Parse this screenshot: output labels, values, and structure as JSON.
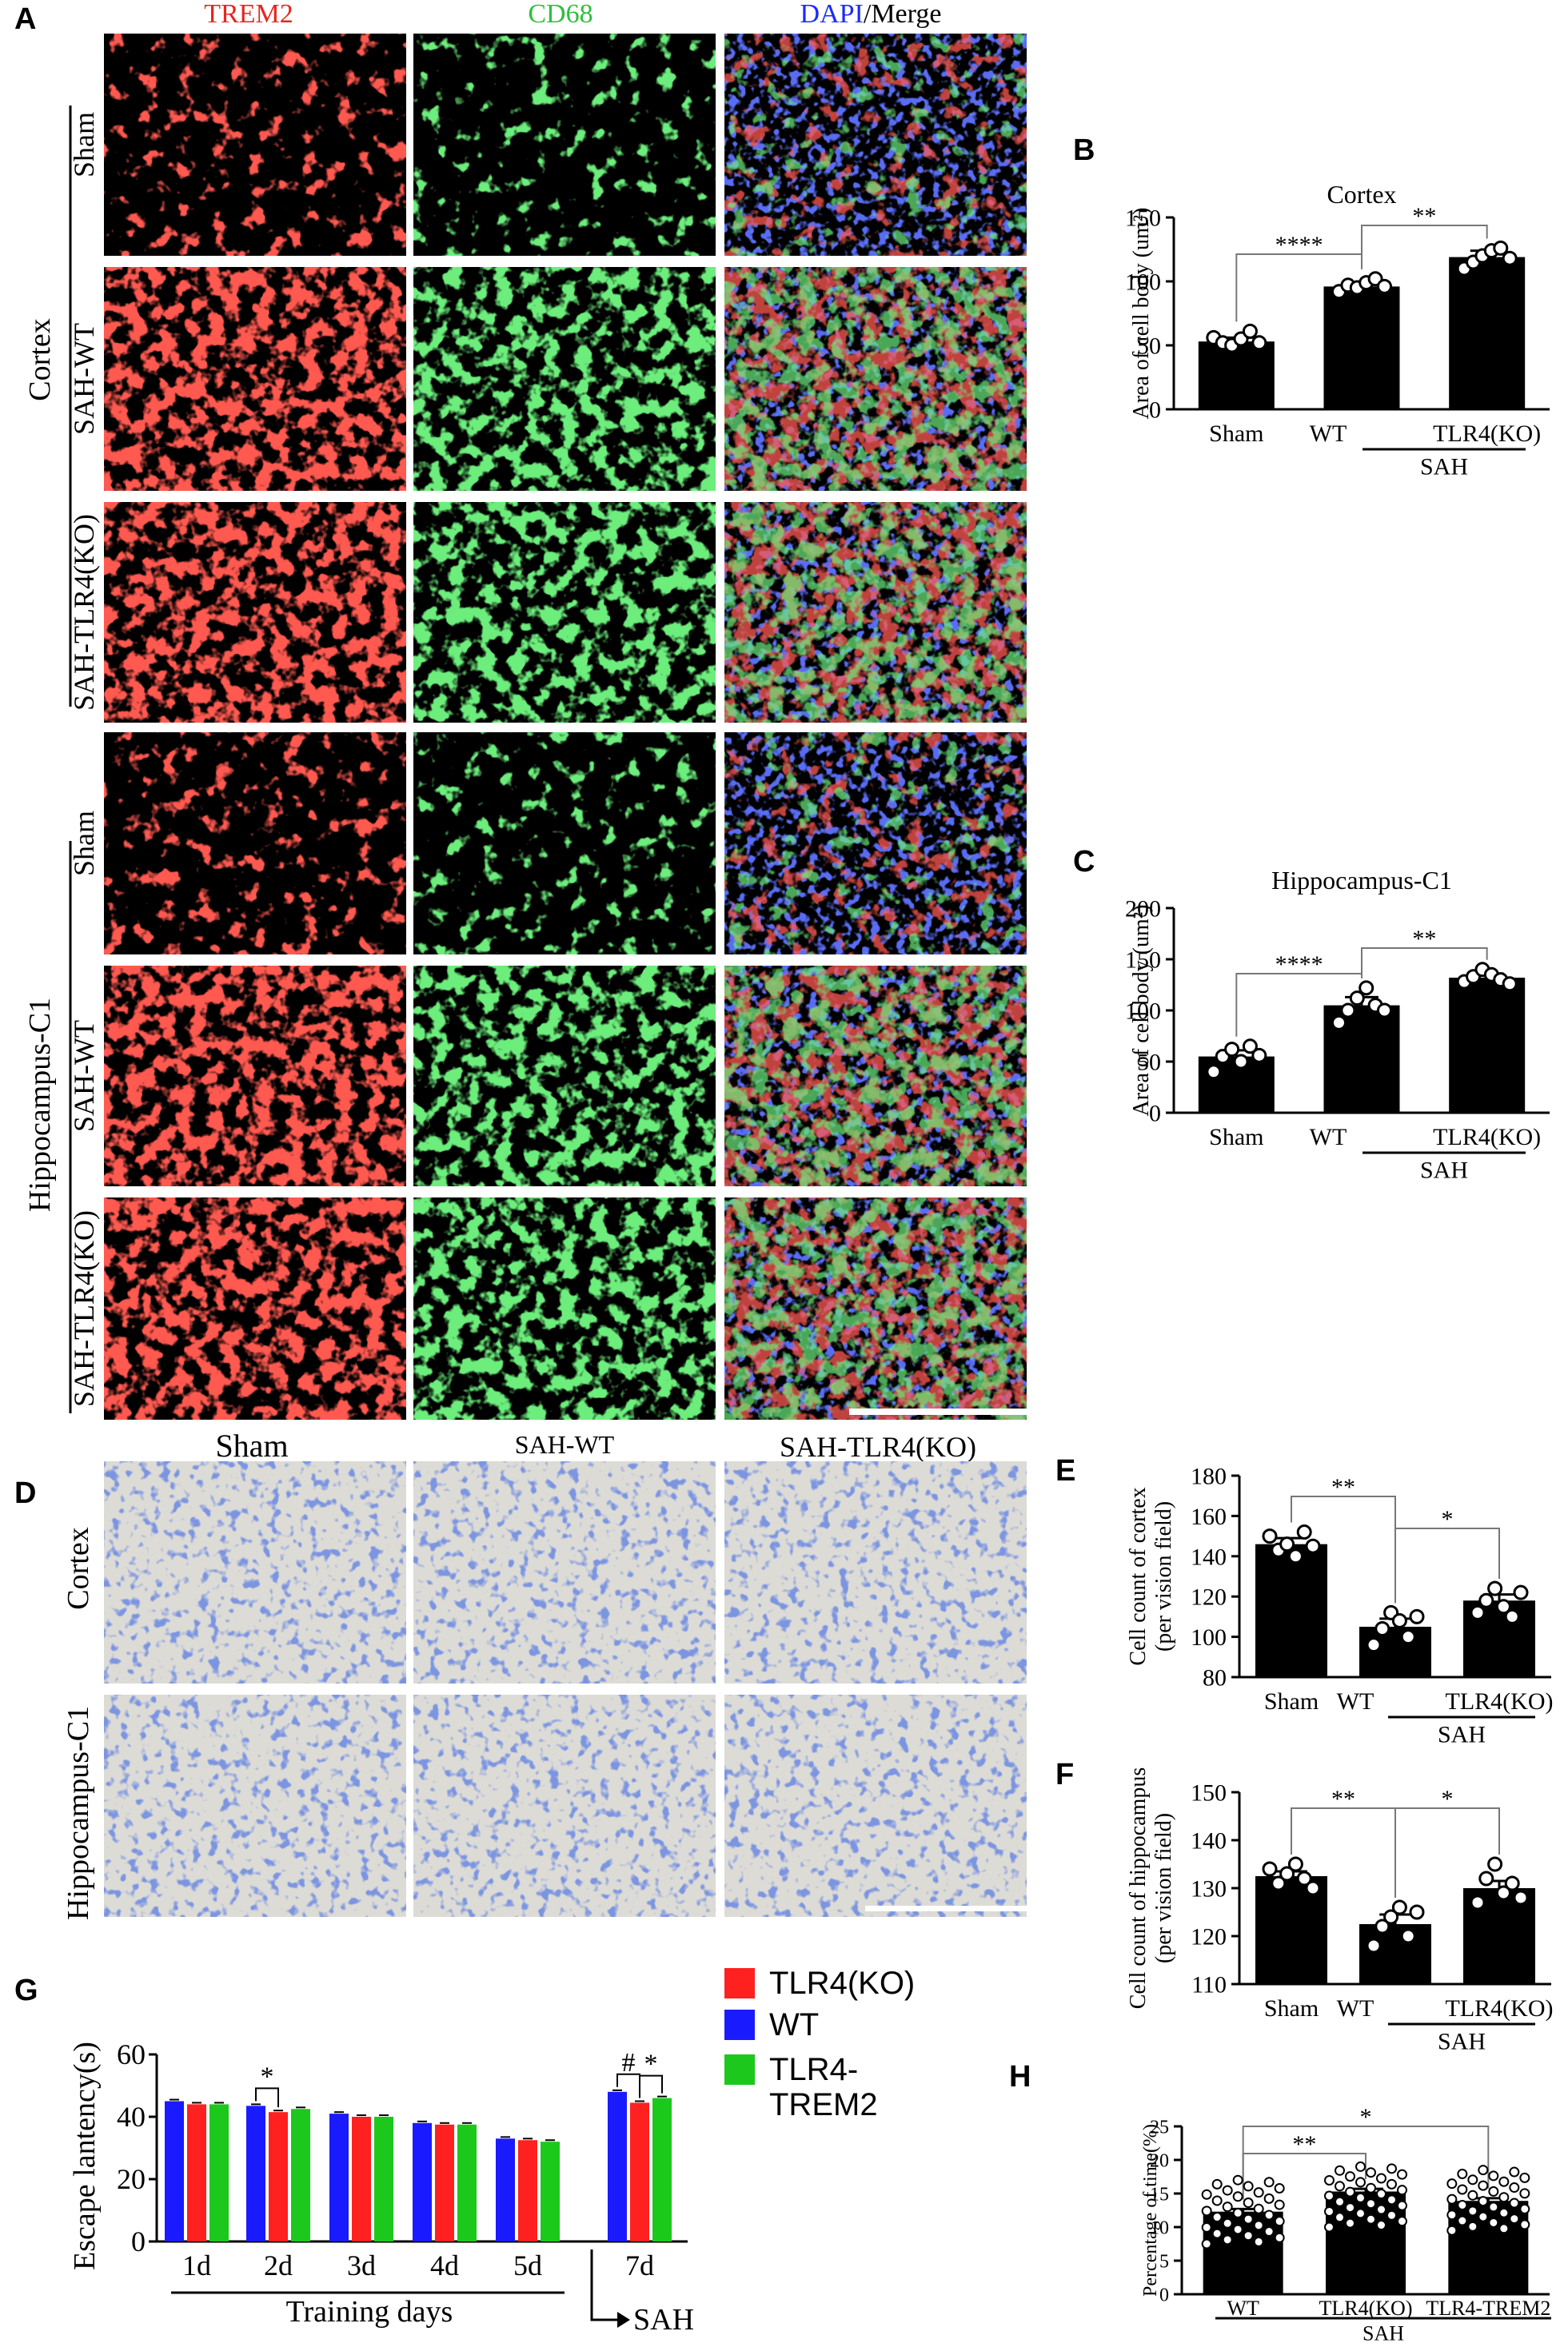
{
  "panel_letters": {
    "a": "A",
    "b": "B",
    "c": "C",
    "d": "D",
    "e": "E",
    "f": "F",
    "g": "G",
    "h": "H"
  },
  "panel_a": {
    "column_headers": [
      {
        "text": "TREM2",
        "color": "#e8251f"
      },
      {
        "text": "CD68",
        "color": "#2fbf3b"
      },
      {
        "text": "DAPI",
        "color": "#1a2cff",
        "suffix": "/Merge"
      }
    ],
    "region_labels": [
      "Cortex",
      "Hippocampus-C1"
    ],
    "row_labels": [
      "Sham",
      "SAH-WT",
      "SAH-TLR4(KO)",
      "Sham",
      "SAH-WT",
      "SAH-TLR4(KO)"
    ]
  },
  "panel_d": {
    "column_headers": [
      "Sham",
      "SAH-WT",
      "SAH-TLR4(KO)"
    ],
    "row_labels": [
      "Cortex",
      "Hippocampus-C1"
    ]
  },
  "chart_data": [
    {
      "id": "B",
      "type": "bar",
      "title": "Cortex",
      "ylabel": "Area of cell body (um²)",
      "ylim": [
        0,
        150
      ],
      "yticks": [
        0,
        50,
        100,
        150
      ],
      "categories": [
        "Sham",
        "WT",
        "TLR4(KO)"
      ],
      "group_label": "SAH",
      "values": [
        53,
        96,
        119
      ],
      "errors": [
        3,
        3,
        5
      ],
      "points": [
        [
          56,
          52,
          50,
          55,
          61,
          52
        ],
        [
          92,
          97,
          95,
          99,
          102,
          96
        ],
        [
          110,
          115,
          120,
          124,
          126,
          118
        ]
      ],
      "significance": [
        {
          "from": 0,
          "to": 1,
          "label": "****"
        },
        {
          "from": 1,
          "to": 2,
          "label": "**"
        }
      ]
    },
    {
      "id": "C",
      "type": "bar",
      "title": "Hippocampus-C1",
      "ylabel": "Area of cell body (um²)",
      "ylim": [
        0,
        200
      ],
      "yticks": [
        0,
        50,
        100,
        150,
        200
      ],
      "categories": [
        "Sham",
        "WT",
        "TLR4(KO)"
      ],
      "group_label": "SAH",
      "values": [
        55,
        105,
        132
      ],
      "errors": [
        6,
        8,
        4
      ],
      "points": [
        [
          40,
          55,
          62,
          50,
          65,
          56
        ],
        [
          88,
          100,
          112,
          122,
          105,
          100
        ],
        [
          128,
          133,
          140,
          135,
          130,
          126
        ]
      ],
      "significance": [
        {
          "from": 0,
          "to": 1,
          "label": "****"
        },
        {
          "from": 1,
          "to": 2,
          "label": "**"
        }
      ]
    },
    {
      "id": "E",
      "type": "bar",
      "title": "",
      "ylabel": "Cell count of cortex (per vision field)",
      "ylim": [
        80,
        180
      ],
      "yticks": [
        80,
        100,
        120,
        140,
        160,
        180
      ],
      "categories": [
        "Sham",
        "WT",
        "TLR4(KO)"
      ],
      "group_label": "SAH",
      "values": [
        146,
        105,
        118
      ],
      "errors": [
        3,
        4,
        3
      ],
      "points": [
        [
          150,
          143,
          146,
          140,
          152,
          145
        ],
        [
          96,
          104,
          112,
          108,
          100,
          110
        ],
        [
          112,
          118,
          124,
          115,
          110,
          122
        ]
      ],
      "significance": [
        {
          "from": 0,
          "to": 1,
          "label": "**"
        },
        {
          "from": 1,
          "to": 2,
          "label": "*"
        }
      ]
    },
    {
      "id": "F",
      "type": "bar",
      "title": "",
      "ylabel": "Cell count of hippocampus (per vision field)",
      "ylim": [
        110,
        150
      ],
      "yticks": [
        110,
        120,
        130,
        140,
        150
      ],
      "categories": [
        "Sham",
        "WT",
        "TLR4(KO)"
      ],
      "group_label": "SAH",
      "values": [
        132.5,
        122.5,
        130
      ],
      "errors": [
        1,
        2,
        1.5
      ],
      "points": [
        [
          134,
          131,
          133,
          135,
          132,
          130
        ],
        [
          118,
          122,
          124,
          126,
          120,
          125
        ],
        [
          127,
          132,
          135,
          129,
          131,
          128
        ]
      ],
      "significance": [
        {
          "from": 0,
          "to": 1,
          "label": "**"
        },
        {
          "from": 1,
          "to": 2,
          "label": "*"
        }
      ]
    },
    {
      "id": "G",
      "type": "bar",
      "title": "",
      "ylabel": "Escape lantency(s)",
      "xlabel": "Training days",
      "ylim": [
        0,
        60
      ],
      "yticks": [
        0,
        20,
        40,
        60
      ],
      "categories": [
        "1d",
        "2d",
        "3d",
        "4d",
        "5d",
        "7d"
      ],
      "series": [
        {
          "name": "WT",
          "color": "#1a1aff",
          "values": [
            45,
            43.5,
            41,
            38,
            33,
            48
          ],
          "errors": [
            0.5,
            0.5,
            0.5,
            0.5,
            0.5,
            0.5
          ]
        },
        {
          "name": "TLR4(KO)",
          "color": "#ff2020",
          "values": [
            44,
            41.5,
            40,
            37.5,
            32.5,
            44.5
          ],
          "errors": [
            0.5,
            0.5,
            0.5,
            0.5,
            0.5,
            0.5
          ]
        },
        {
          "name": "TLR4-TREM2",
          "color": "#1cc81c",
          "values": [
            44,
            42.5,
            40,
            37.5,
            32,
            46
          ],
          "errors": [
            0.5,
            0.5,
            0.5,
            0.5,
            0.5,
            0.5
          ]
        }
      ],
      "legend": [
        {
          "name": "TLR4(KO)",
          "color": "#ff2020"
        },
        {
          "name": "WT",
          "color": "#1a1aff"
        },
        {
          "name": "TLR4-\nTREM2",
          "color": "#1cc81c"
        }
      ],
      "marks": [
        {
          "category": 1,
          "from": 0,
          "to": 1,
          "label": "*"
        },
        {
          "category": 5,
          "from": 0,
          "to": 1,
          "label": "#"
        },
        {
          "category": 5,
          "from": 1,
          "to": 2,
          "label": "*"
        }
      ],
      "sah_label": "SAH"
    },
    {
      "id": "H",
      "type": "bar",
      "title": "",
      "ylabel": "Percentage of time(%)",
      "ylim": [
        0,
        25
      ],
      "yticks": [
        0,
        5,
        10,
        15,
        20,
        25
      ],
      "categories": [
        "WT",
        "TLR4(KO)",
        "TLR4-TREM2"
      ],
      "group_label": "SAH",
      "values": [
        12.3,
        15.3,
        13.9
      ],
      "errors": [
        0.4,
        0.4,
        0.4
      ],
      "significance": [
        {
          "from": 0,
          "to": 1,
          "label": "**"
        },
        {
          "from": 0,
          "to": 2,
          "label": "*"
        }
      ]
    }
  ]
}
